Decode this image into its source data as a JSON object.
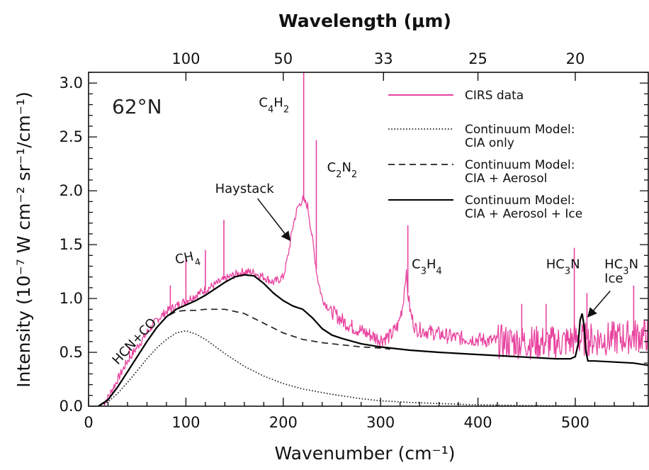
{
  "chart_data": {
    "type": "line",
    "region_label": "62°N",
    "xlabel": "Wavenumber (cm⁻¹)",
    "ylabel": "Intensity (10⁻⁷ W cm⁻² sr⁻¹/cm⁻¹)",
    "top_axis_label": "Wavelength (μm)",
    "xlim": [
      0,
      575
    ],
    "ylim": [
      0,
      3.1
    ],
    "x_ticks": [
      0,
      100,
      200,
      300,
      400,
      500
    ],
    "y_ticks": [
      0.0,
      0.5,
      1.0,
      1.5,
      2.0,
      2.5,
      3.0
    ],
    "y_tick_labels": [
      "0.0",
      "0.5",
      "1.0",
      "1.5",
      "2.0",
      "2.5",
      "3.0"
    ],
    "top_ticks": [
      {
        "label": "100",
        "wavenumber": 100
      },
      {
        "label": "50",
        "wavenumber": 200
      },
      {
        "label": "33",
        "wavenumber": 303
      },
      {
        "label": "25",
        "wavenumber": 400
      },
      {
        "label": "20",
        "wavenumber": 500
      }
    ],
    "legend": {
      "placement": "top-right",
      "entries": [
        {
          "series": "cirs",
          "lines": [
            "CIRS data"
          ]
        },
        {
          "series": "cia",
          "lines": [
            "Continuum Model:",
            "CIA only"
          ]
        },
        {
          "series": "cia_aerosol",
          "lines": [
            "Continuum Model:",
            "CIA + Aerosol"
          ]
        },
        {
          "series": "cia_aerosol_ice",
          "lines": [
            "Continuum Model:",
            "CIA + Aerosol + Ice"
          ]
        }
      ]
    },
    "series": [
      {
        "id": "cirs",
        "name": "CIRS data",
        "color": "#e8429e",
        "style": "solid",
        "x": [
          15,
          20,
          30,
          40,
          50,
          60,
          70,
          80,
          90,
          100,
          110,
          120,
          130,
          140,
          150,
          160,
          170,
          180,
          190,
          200,
          205,
          210,
          215,
          220,
          225,
          230,
          235,
          240,
          245,
          250,
          260,
          270,
          280,
          290,
          300,
          310,
          318,
          323,
          326,
          328,
          331,
          336,
          345,
          355,
          365,
          375,
          385,
          400,
          420,
          440,
          460,
          480,
          490,
          500,
          510,
          520,
          540,
          560,
          575
        ],
        "y": [
          0.02,
          0.08,
          0.25,
          0.42,
          0.55,
          0.68,
          0.8,
          0.88,
          0.93,
          0.98,
          1.03,
          1.08,
          1.13,
          1.18,
          1.22,
          1.25,
          1.24,
          1.2,
          1.15,
          1.2,
          1.4,
          1.68,
          1.85,
          1.92,
          1.86,
          1.55,
          1.2,
          1.0,
          0.93,
          0.88,
          0.8,
          0.74,
          0.7,
          0.66,
          0.62,
          0.65,
          0.75,
          0.95,
          1.25,
          1.05,
          0.85,
          0.72,
          0.7,
          0.68,
          0.66,
          0.64,
          0.63,
          0.62,
          0.6,
          0.6,
          0.59,
          0.59,
          0.6,
          0.62,
          0.62,
          0.62,
          0.63,
          0.65,
          0.66
        ],
        "spikes": [
          {
            "x": 42,
            "y": 0.55
          },
          {
            "x": 84,
            "y": 1.12
          },
          {
            "x": 100,
            "y": 1.38
          },
          {
            "x": 120,
            "y": 1.45
          },
          {
            "x": 139,
            "y": 1.73
          },
          {
            "x": 221,
            "y": 3.1
          },
          {
            "x": 234,
            "y": 2.47
          },
          {
            "x": 328,
            "y": 1.68
          },
          {
            "x": 445,
            "y": 0.95
          },
          {
            "x": 470,
            "y": 0.95
          },
          {
            "x": 499,
            "y": 1.47
          },
          {
            "x": 512,
            "y": 1.05
          },
          {
            "x": 560,
            "y": 1.12
          }
        ]
      },
      {
        "id": "cia",
        "name": "Continuum Model: CIA only",
        "color": "#222222",
        "style": "dotted",
        "x": [
          10,
          20,
          30,
          40,
          50,
          60,
          70,
          80,
          90,
          100,
          110,
          120,
          140,
          160,
          180,
          200,
          220,
          250,
          280,
          300,
          330,
          360,
          390,
          420,
          450,
          480,
          510,
          540,
          575
        ],
        "y": [
          0.0,
          0.04,
          0.12,
          0.22,
          0.33,
          0.44,
          0.54,
          0.62,
          0.68,
          0.7,
          0.67,
          0.62,
          0.49,
          0.37,
          0.28,
          0.21,
          0.16,
          0.11,
          0.07,
          0.05,
          0.035,
          0.025,
          0.015,
          0.01,
          0.006,
          0.004,
          0.003,
          0.002,
          0.001
        ]
      },
      {
        "id": "cia_aerosol",
        "name": "Continuum Model: CIA + Aerosol",
        "color": "#222222",
        "style": "dashed",
        "x": [
          10,
          20,
          30,
          40,
          50,
          60,
          70,
          80,
          90,
          100,
          110,
          120,
          140,
          160,
          180,
          200,
          220,
          240,
          260,
          280,
          300,
          310
        ],
        "y": [
          0.0,
          0.06,
          0.18,
          0.32,
          0.46,
          0.6,
          0.73,
          0.83,
          0.88,
          0.89,
          0.89,
          0.9,
          0.9,
          0.86,
          0.77,
          0.68,
          0.62,
          0.59,
          0.57,
          0.55,
          0.54,
          0.53
        ]
      },
      {
        "id": "cia_aerosol_ice",
        "name": "Continuum Model: CIA + Aerosol + Ice",
        "color": "#000000",
        "style": "solid",
        "x": [
          10,
          20,
          30,
          40,
          50,
          60,
          70,
          80,
          90,
          100,
          110,
          120,
          130,
          140,
          150,
          160,
          170,
          180,
          190,
          200,
          210,
          220,
          230,
          240,
          250,
          260,
          280,
          300,
          330,
          360,
          400,
          440,
          480,
          495,
          500,
          503,
          505,
          507,
          509,
          511,
          513,
          520,
          540,
          560,
          575
        ],
        "y": [
          0.0,
          0.06,
          0.18,
          0.32,
          0.46,
          0.6,
          0.73,
          0.83,
          0.9,
          0.94,
          0.98,
          1.03,
          1.09,
          1.15,
          1.2,
          1.22,
          1.21,
          1.14,
          1.05,
          0.98,
          0.93,
          0.9,
          0.82,
          0.72,
          0.66,
          0.63,
          0.58,
          0.55,
          0.52,
          0.5,
          0.48,
          0.46,
          0.44,
          0.44,
          0.46,
          0.58,
          0.8,
          0.86,
          0.75,
          0.5,
          0.42,
          0.42,
          0.41,
          0.4,
          0.38
        ]
      }
    ],
    "annotations": [
      {
        "id": "hcn-co",
        "lines": [
          "HCN+CO"
        ],
        "x": 30,
        "y": 0.38,
        "rotate": -47
      },
      {
        "id": "ch4",
        "lines": [
          "CH4"
        ],
        "x": 90,
        "y": 1.32,
        "rotate": -12,
        "subscript_index": 2
      },
      {
        "id": "c4h2",
        "lines": [
          "C4H2"
        ],
        "x": 175,
        "y": 2.78,
        "rotate": 0,
        "subscripts": [
          1,
          3
        ]
      },
      {
        "id": "haystack",
        "lines": [
          "Haystack"
        ],
        "x": 130,
        "y": 1.98,
        "rotate": 0,
        "arrow_to": {
          "x": 207,
          "y": 1.54
        }
      },
      {
        "id": "c2n2",
        "lines": [
          "C2N2"
        ],
        "x": 245,
        "y": 2.18,
        "rotate": 0,
        "subscripts": [
          1,
          3
        ]
      },
      {
        "id": "c3h4",
        "lines": [
          "C3H4"
        ],
        "x": 332,
        "y": 1.28,
        "rotate": 0,
        "subscripts": [
          1,
          3
        ]
      },
      {
        "id": "hc3n",
        "lines": [
          "HC3N"
        ],
        "x": 470,
        "y": 1.28,
        "rotate": 0,
        "subscripts": [
          2
        ]
      },
      {
        "id": "hc3n-ice",
        "lines": [
          "HC3N",
          "Ice"
        ],
        "x": 530,
        "y": 1.28,
        "rotate": 0,
        "subscripts": [
          2
        ],
        "arrow_to": {
          "x": 513,
          "y": 0.83
        }
      }
    ]
  }
}
